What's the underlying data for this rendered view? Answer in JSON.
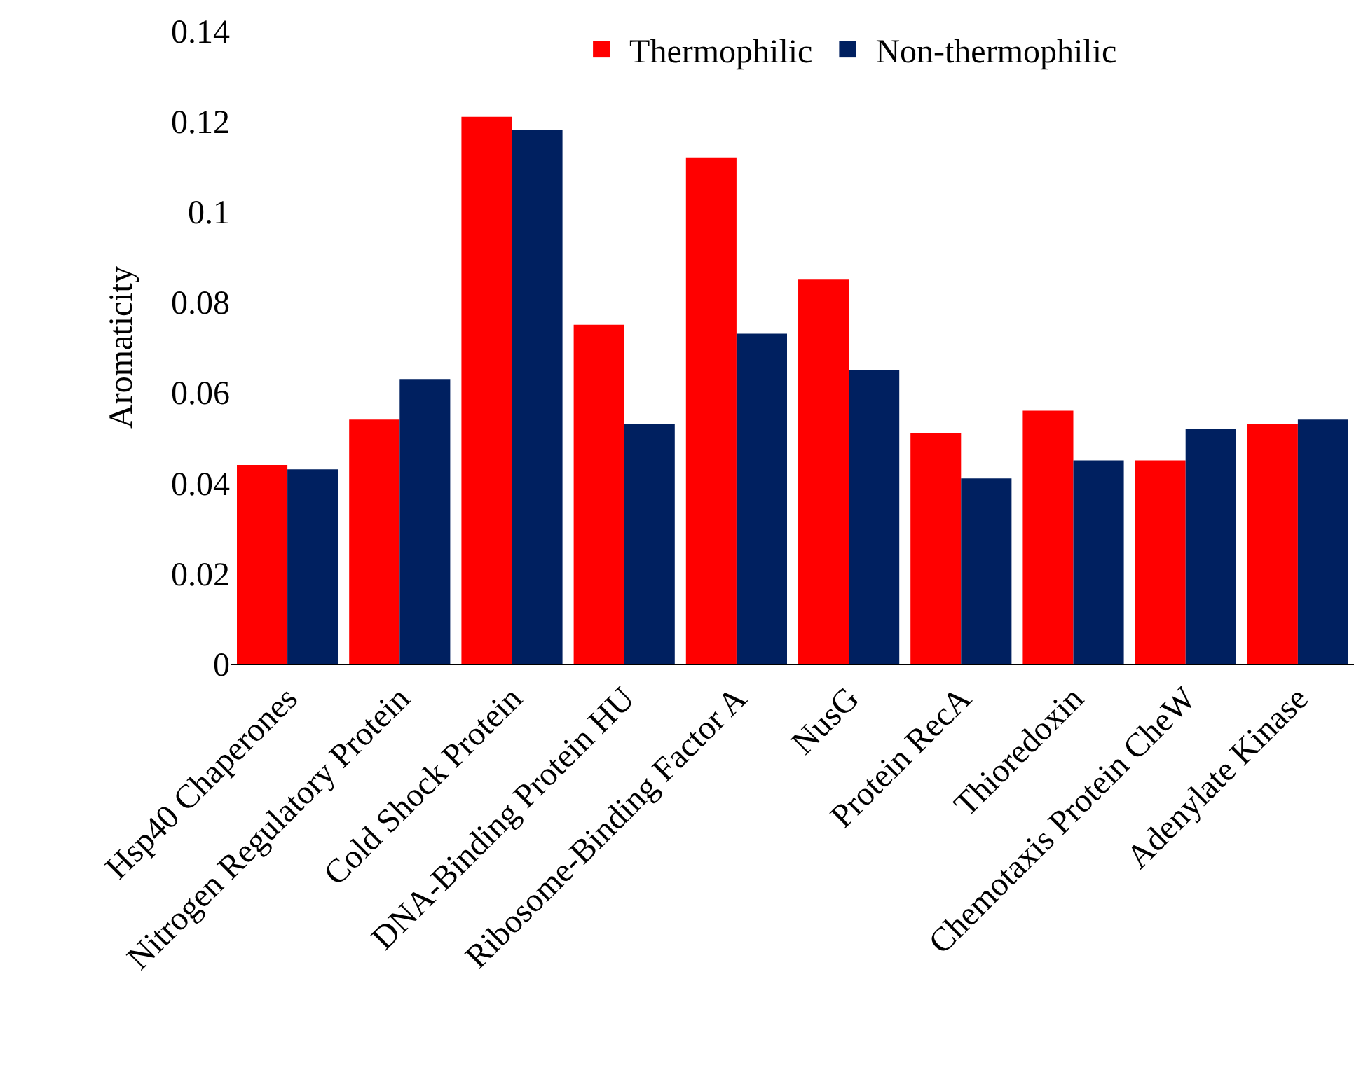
{
  "chart_data": {
    "type": "bar",
    "ylabel": "Aromaticity",
    "categories": [
      "Hsp40 Chaperones",
      "Nitrogen Regulatory Protein",
      "Cold Shock Protein",
      "DNA-Binding Protein HU",
      "Ribosome-Binding Factor A",
      "NusG",
      "Protein RecA",
      "Thioredoxin",
      "Chemotaxis Protein CheW",
      "Adenylate Kinase"
    ],
    "series": [
      {
        "name": "Thermophilic",
        "color": "#ff0000",
        "values": [
          0.044,
          0.054,
          0.121,
          0.075,
          0.112,
          0.085,
          0.051,
          0.056,
          0.045,
          0.053
        ]
      },
      {
        "name": "Non-thermophilic",
        "color": "#002060",
        "values": [
          0.043,
          0.063,
          0.118,
          0.053,
          0.073,
          0.065,
          0.041,
          0.045,
          0.052,
          0.054
        ]
      }
    ],
    "ylim": [
      0,
      0.14
    ],
    "yticks": [
      0,
      0.02,
      0.04,
      0.06,
      0.08,
      0.1,
      0.12,
      0.14
    ],
    "grid": false,
    "legend": "top"
  }
}
